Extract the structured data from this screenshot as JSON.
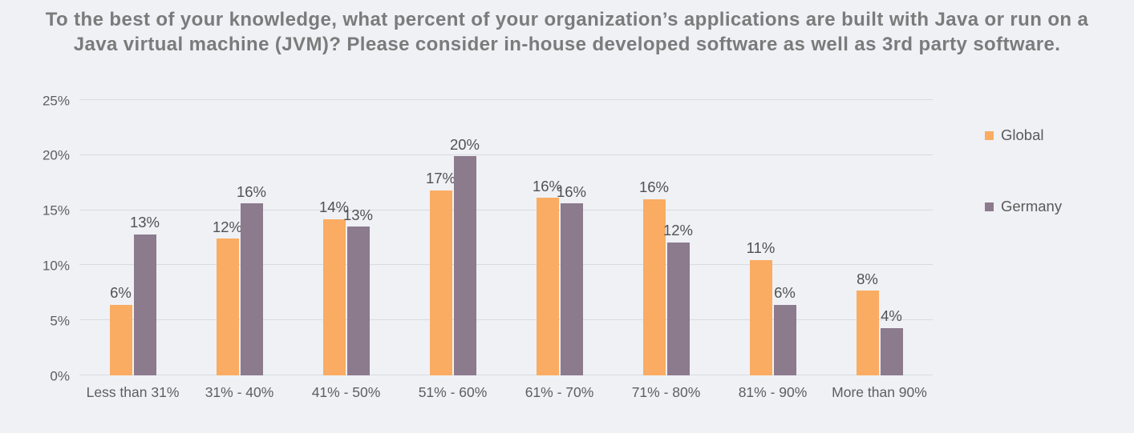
{
  "title": {
    "line1": "To the best of your knowledge, what percent of your organization’s applications are built with Java or run on a",
    "line2": "Java virtual machine (JVM)?  Please consider in-house developed software as well as 3rd party software."
  },
  "colors": {
    "background": "#eff1f5",
    "gridline": "#d8dbe0",
    "title_text": "#7b7b7b",
    "axis_text": "#5e5e5e",
    "data_label_text": "#515151",
    "global_series": "#faac62",
    "germany_series": "#8c7a8d"
  },
  "chart_data": {
    "type": "bar",
    "title": "To the best of your knowledge, what percent of your organization’s applications are built with Java or run on a Java virtual machine (JVM)?  Please consider in-house developed software as well as 3rd party software.",
    "categories": [
      "Less than 31%",
      "31% - 40%",
      "41% - 50%",
      "51% - 60%",
      "61% - 70%",
      "71% - 80%",
      "81% - 90%",
      "More than 90%"
    ],
    "series": [
      {
        "name": "Global",
        "color": "#faac62",
        "values": [
          6,
          12,
          14,
          17,
          16,
          16,
          11,
          8
        ],
        "labels": [
          "6%",
          "12%",
          "14%",
          "17%",
          "16%",
          "16%",
          "11%",
          "8%"
        ],
        "bar_heights_pct": [
          6.4,
          12.4,
          14.2,
          16.8,
          16.1,
          16.0,
          10.5,
          7.7
        ]
      },
      {
        "name": "Germany",
        "color": "#8c7a8d",
        "values": [
          13,
          16,
          13,
          20,
          16,
          12,
          6,
          4
        ],
        "labels": [
          "13%",
          "16%",
          "13%",
          "20%",
          "16%",
          "12%",
          "6%",
          "4%"
        ],
        "bar_heights_pct": [
          12.8,
          15.6,
          13.5,
          19.9,
          15.6,
          12.1,
          6.4,
          4.3
        ]
      }
    ],
    "xlabel": "",
    "ylabel": "",
    "ylim": [
      0,
      25
    ],
    "y_ticks": [
      "0%",
      "5%",
      "10%",
      "15%",
      "20%",
      "25%"
    ],
    "y_tick_values": [
      0,
      5,
      10,
      15,
      20,
      25
    ],
    "grid": true,
    "legend_position": "right",
    "legend_entries": [
      "Global",
      "Germany"
    ]
  }
}
